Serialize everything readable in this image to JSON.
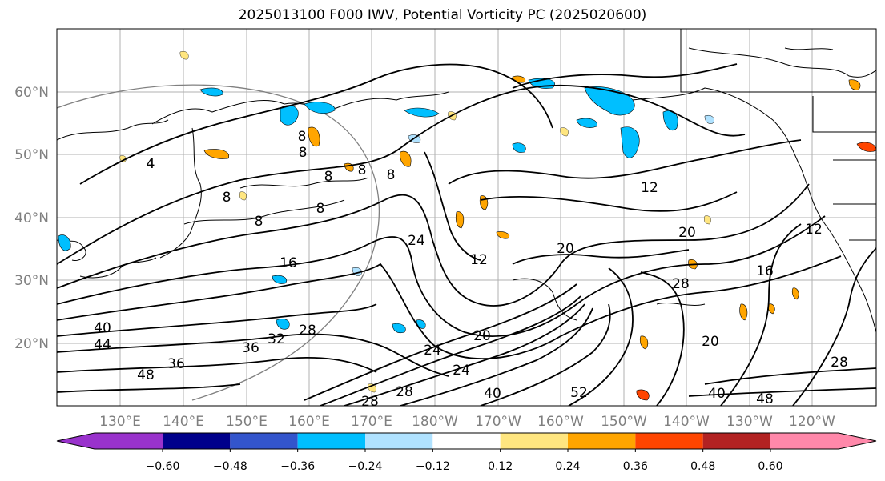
{
  "title": "2025013100 F000 IWV, Potential Vorticity PC (2025020600)",
  "map": {
    "lat_labels": [
      "60°N",
      "50°N",
      "40°N",
      "30°N",
      "20°N"
    ],
    "lon_labels": [
      "130°E",
      "140°E",
      "150°E",
      "160°E",
      "170°E",
      "180°W",
      "170°W",
      "160°W",
      "150°W",
      "140°W",
      "130°W",
      "120°W"
    ],
    "land_color": "#000000",
    "contour_color": "#000000",
    "contour_labels": [
      "4",
      "8",
      "8",
      "8",
      "8",
      "8",
      "8",
      "8",
      "8",
      "16",
      "20",
      "20",
      "20",
      "24",
      "24",
      "28",
      "28",
      "28",
      "28",
      "32",
      "36",
      "36",
      "40",
      "40",
      "40",
      "44",
      "48",
      "48",
      "52",
      "12",
      "16",
      "20",
      "24",
      "28",
      "12",
      "12"
    ]
  },
  "colorbar": {
    "ticks": [
      "−0.60",
      "−0.48",
      "−0.36",
      "−0.24",
      "−0.12",
      "0.12",
      "0.24",
      "0.36",
      "0.48",
      "0.60"
    ],
    "colors": [
      "#9932cc",
      "#00008b",
      "#3355cc",
      "#00bfff",
      "#b0e2ff",
      "#ffffff",
      "#ffe680",
      "#ffa500",
      "#ff4500",
      "#b22222",
      "#ff88aa"
    ]
  }
}
